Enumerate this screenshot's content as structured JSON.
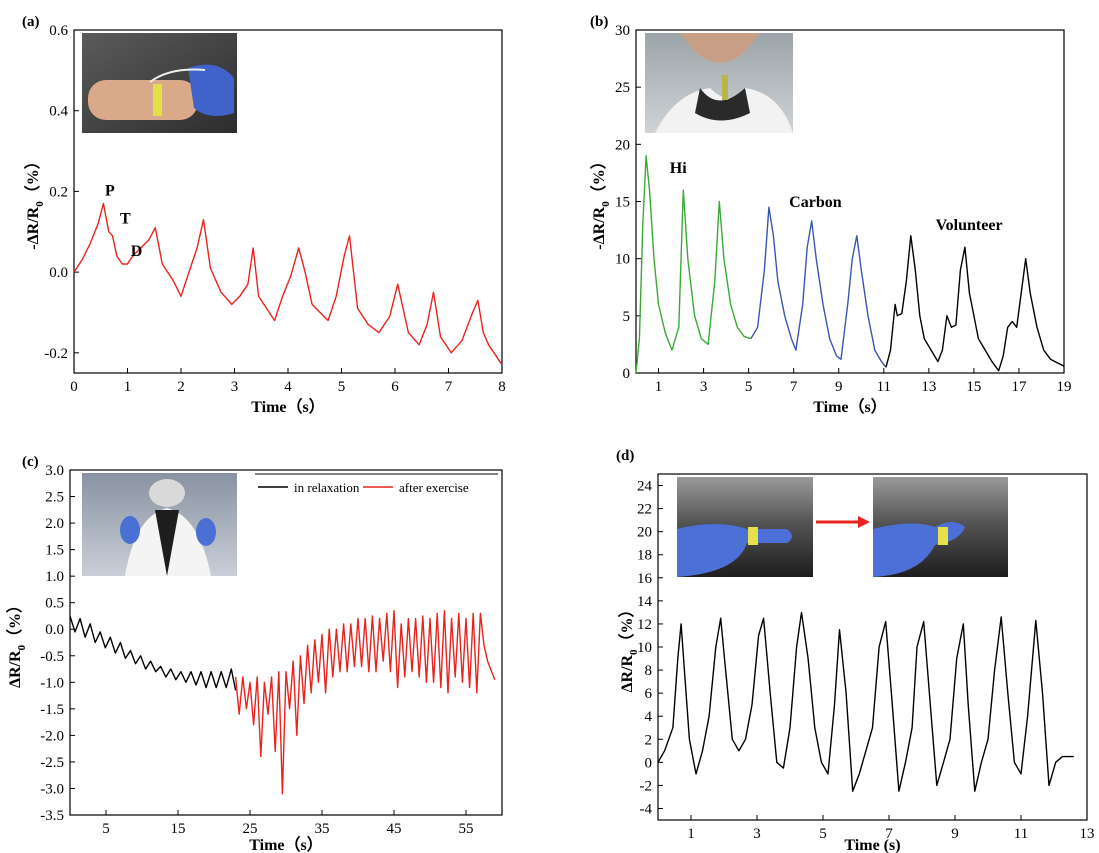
{
  "chart_data": [
    {
      "panel": "(a)",
      "type": "line",
      "xlabel": "Time（s）",
      "ylabel_main": "-ΔR/R",
      "ylabel_sub": "0",
      "ylabel_unit": "（%）",
      "xlim": [
        0,
        8
      ],
      "ylim": [
        -0.25,
        0.6
      ],
      "xticks": [
        "0",
        "1",
        "2",
        "3",
        "4",
        "5",
        "6",
        "7",
        "8"
      ],
      "yticks": [
        "-0.2",
        "0.0",
        "0.2",
        "0.4",
        "0.6"
      ],
      "annotations": [
        {
          "text": "P",
          "x": 0.58,
          "y": 0.19
        },
        {
          "text": "T",
          "x": 0.86,
          "y": 0.12
        },
        {
          "text": "D",
          "x": 1.06,
          "y": 0.04
        }
      ],
      "inset": "photo of wrist with sensor and gloved hand",
      "series": [
        {
          "color": "#e8231e",
          "x": [
            0,
            0.15,
            0.3,
            0.45,
            0.55,
            0.65,
            0.72,
            0.8,
            0.9,
            1.0,
            1.1,
            1.25,
            1.4,
            1.52,
            1.65,
            1.85,
            2.0,
            2.15,
            2.3,
            2.42,
            2.55,
            2.75,
            2.95,
            3.1,
            3.25,
            3.35,
            3.45,
            3.6,
            3.75,
            3.9,
            4.05,
            4.2,
            4.32,
            4.45,
            4.6,
            4.75,
            4.9,
            5.05,
            5.15,
            5.3,
            5.5,
            5.7,
            5.9,
            6.05,
            6.25,
            6.45,
            6.6,
            6.72,
            6.85,
            7.05,
            7.25,
            7.45,
            7.55,
            7.65,
            7.75,
            7.85,
            8.0
          ],
          "y": [
            0.0,
            0.03,
            0.07,
            0.12,
            0.17,
            0.1,
            0.09,
            0.04,
            0.02,
            0.02,
            0.04,
            0.06,
            0.08,
            0.11,
            0.02,
            -0.02,
            -0.06,
            0.0,
            0.06,
            0.13,
            0.01,
            -0.05,
            -0.08,
            -0.06,
            -0.03,
            0.06,
            -0.06,
            -0.09,
            -0.12,
            -0.06,
            -0.01,
            0.06,
            0.0,
            -0.08,
            -0.1,
            -0.12,
            -0.06,
            0.04,
            0.09,
            -0.09,
            -0.13,
            -0.15,
            -0.11,
            -0.03,
            -0.15,
            -0.18,
            -0.13,
            -0.05,
            -0.16,
            -0.2,
            -0.17,
            -0.1,
            -0.07,
            -0.15,
            -0.18,
            -0.2,
            -0.23
          ]
        }
      ]
    },
    {
      "panel": "(b)",
      "type": "line",
      "xlabel": "Time（s）",
      "ylabel_main": "-ΔR/R",
      "ylabel_sub": "0",
      "ylabel_unit": "（%）",
      "xlim": [
        0,
        19
      ],
      "ylim": [
        0,
        30
      ],
      "xticks": [
        "1",
        "3",
        "5",
        "7",
        "9",
        "11",
        "13",
        "15",
        "17",
        "19"
      ],
      "xtick_values": [
        1,
        3,
        5,
        7,
        9,
        11,
        13,
        15,
        17,
        19
      ],
      "yticks": [
        "0",
        "5",
        "10",
        "15",
        "20",
        "25",
        "30"
      ],
      "annotations": [
        {
          "text": "Hi",
          "x": 1.5,
          "y": 17.5
        },
        {
          "text": "Carbon",
          "x": 6.8,
          "y": 14.5
        },
        {
          "text": "Volunteer",
          "x": 13.3,
          "y": 12.5
        }
      ],
      "inset": "photo of neck with sensor",
      "series": [
        {
          "name": "",
          "color": "#3aaa35",
          "x": [
            0,
            0.15,
            0.3,
            0.45,
            0.6,
            0.8,
            1.0,
            1.3,
            1.6,
            1.9,
            2.1,
            2.3,
            2.6,
            2.9,
            3.2,
            3.5,
            3.7,
            3.9,
            4.2,
            4.5,
            4.8,
            5.1
          ],
          "y": [
            0,
            3,
            13,
            19,
            16,
            10,
            6,
            3.5,
            2,
            4,
            16,
            10,
            5,
            3,
            2.5,
            8,
            15,
            10,
            6,
            4,
            3.2,
            3.0
          ]
        },
        {
          "name": "",
          "color": "#3b55b3",
          "x": [
            5.1,
            5.4,
            5.7,
            5.9,
            6.1,
            6.3,
            6.6,
            6.9,
            7.1,
            7.4,
            7.6,
            7.8,
            8.0,
            8.3,
            8.6,
            8.9,
            9.1,
            9.4,
            9.6,
            9.8,
            10.0,
            10.3,
            10.6,
            10.9,
            11.1
          ],
          "y": [
            3.0,
            4,
            9,
            14.5,
            12,
            8,
            5,
            3,
            2,
            6,
            11,
            13.3,
            10,
            6,
            3,
            1.5,
            1.2,
            6,
            10,
            12,
            9,
            5,
            2,
            1,
            0.5
          ]
        },
        {
          "name": "",
          "color": "#000000",
          "x": [
            11.1,
            11.3,
            11.5,
            11.6,
            11.8,
            12.0,
            12.2,
            12.4,
            12.6,
            12.8,
            13.1,
            13.4,
            13.6,
            13.8,
            14.0,
            14.2,
            14.4,
            14.6,
            14.8,
            15.0,
            15.2,
            15.5,
            15.8,
            16.1,
            16.3,
            16.5,
            16.7,
            16.9,
            17.1,
            17.3,
            17.5,
            17.8,
            18.1,
            18.4,
            18.7,
            19.0
          ],
          "y": [
            0.5,
            2,
            6,
            5,
            5.2,
            8,
            12,
            9,
            5,
            3,
            2,
            1,
            2,
            5,
            4,
            4.2,
            9,
            11,
            7,
            5,
            3,
            2,
            1,
            0.2,
            1.5,
            4,
            4.5,
            4,
            7,
            10,
            7,
            4,
            2,
            1.2,
            0.9,
            0.6
          ]
        }
      ]
    },
    {
      "panel": "(c)",
      "type": "line",
      "xlabel": "Time（s）",
      "ylabel_main": "ΔR/R",
      "ylabel_sub": "0",
      "ylabel_unit": "（%）",
      "xlim": [
        0,
        60
      ],
      "ylim": [
        -3.5,
        3.0
      ],
      "xticks": [
        "5",
        "15",
        "25",
        "35",
        "45",
        "55"
      ],
      "xtick_values": [
        5,
        15,
        25,
        35,
        45,
        55
      ],
      "yticks": [
        "-3.5",
        "-3.0",
        "-2.5",
        "-2.0",
        "-1.5",
        "-1.0",
        "-0.5",
        "0.0",
        "0.5",
        "1.0",
        "1.5",
        "2.0",
        "2.5",
        "3.0"
      ],
      "inset": "photo of person holding sensor leads",
      "legend": [
        "in relaxation",
        "after exercise"
      ],
      "series": [
        {
          "name": "in relaxation",
          "color": "#000000",
          "x": [
            0,
            0.7,
            1.4,
            2.1,
            2.8,
            3.5,
            4.2,
            4.9,
            5.6,
            6.3,
            7.0,
            7.7,
            8.4,
            9.1,
            9.8,
            10.5,
            11.2,
            11.9,
            12.6,
            13.3,
            14.0,
            14.7,
            15.4,
            16.1,
            16.8,
            17.5,
            18.2,
            18.9,
            19.6,
            20.3,
            21.0,
            21.7,
            22.4,
            23.0
          ],
          "y": [
            0.25,
            -0.05,
            0.2,
            -0.15,
            0.1,
            -0.25,
            -0.05,
            -0.35,
            -0.15,
            -0.45,
            -0.25,
            -0.55,
            -0.4,
            -0.65,
            -0.5,
            -0.75,
            -0.6,
            -0.8,
            -0.7,
            -0.9,
            -0.75,
            -0.95,
            -0.8,
            -1.0,
            -0.8,
            -1.05,
            -0.8,
            -1.1,
            -0.8,
            -1.1,
            -0.8,
            -1.1,
            -0.75,
            -1.15
          ]
        },
        {
          "name": "after exercise",
          "color": "#e8231e",
          "x": [
            23.0,
            23.5,
            24.0,
            24.5,
            25.0,
            25.5,
            26.0,
            26.5,
            27.0,
            27.5,
            28.0,
            28.5,
            29.0,
            29.5,
            30.0,
            30.5,
            31.0,
            31.5,
            32.0,
            32.5,
            33.0,
            33.5,
            34.0,
            34.5,
            35.0,
            35.5,
            36.0,
            36.5,
            37.0,
            37.5,
            38.0,
            38.5,
            39.0,
            39.5,
            40.0,
            40.5,
            41.0,
            41.5,
            42.0,
            42.5,
            43.0,
            43.5,
            44.0,
            44.5,
            45.0,
            45.5,
            46.0,
            46.5,
            47.0,
            47.5,
            48.0,
            48.5,
            49.0,
            49.5,
            50.0,
            50.5,
            51.0,
            51.5,
            52.0,
            52.5,
            53.0,
            53.5,
            54.0,
            54.5,
            55.0,
            55.5,
            56.0,
            56.5,
            57.0,
            57.5,
            58.0,
            59.0
          ],
          "y": [
            -0.9,
            -1.6,
            -0.9,
            -1.5,
            -1.0,
            -1.8,
            -0.9,
            -2.4,
            -1.0,
            -1.6,
            -0.9,
            -2.3,
            -0.8,
            -3.1,
            -0.8,
            -1.5,
            -0.6,
            -2.0,
            -0.5,
            -1.4,
            -0.3,
            -1.2,
            -0.2,
            -1.0,
            -0.1,
            -1.2,
            0.0,
            -0.9,
            0.0,
            -0.8,
            0.1,
            -0.8,
            0.1,
            -0.7,
            0.2,
            -0.7,
            0.2,
            -0.8,
            0.25,
            -0.8,
            0.2,
            -0.6,
            0.3,
            -0.8,
            0.35,
            -1.1,
            0.1,
            -0.9,
            0.2,
            -0.8,
            0.2,
            -0.9,
            0.25,
            -1.0,
            0.2,
            -1.0,
            0.3,
            -1.1,
            0.35,
            -1.2,
            0.2,
            -0.9,
            0.3,
            -1.0,
            0.2,
            -1.1,
            0.3,
            -1.2,
            0.3,
            -0.3,
            -0.6,
            -0.95
          ]
        }
      ]
    },
    {
      "panel": "(d)",
      "type": "line",
      "xlabel": "Time (s)",
      "ylabel_main": "ΔR/R",
      "ylabel_sub": "0",
      "ylabel_unit": "（%）",
      "xlim": [
        0,
        13
      ],
      "ylim": [
        -5,
        25
      ],
      "xticks": [
        "1",
        "3",
        "5",
        "7",
        "9",
        "11",
        "13"
      ],
      "xtick_values": [
        1,
        3,
        5,
        7,
        9,
        11,
        13
      ],
      "yticks": [
        "-4",
        "-2",
        "0",
        "2",
        "4",
        "6",
        "8",
        "10",
        "12",
        "14",
        "16",
        "18",
        "20",
        "22",
        "24"
      ],
      "inset": "two photos of gloved finger bending, with arrow",
      "series": [
        {
          "color": "#000000",
          "x": [
            0,
            0.2,
            0.45,
            0.6,
            0.7,
            0.8,
            0.95,
            1.15,
            1.35,
            1.55,
            1.75,
            1.9,
            2.05,
            2.25,
            2.45,
            2.65,
            2.85,
            3.05,
            3.2,
            3.4,
            3.6,
            3.8,
            4.0,
            4.2,
            4.35,
            4.55,
            4.75,
            4.95,
            5.15,
            5.35,
            5.5,
            5.7,
            5.9,
            6.1,
            6.3,
            6.5,
            6.7,
            6.9,
            7.1,
            7.3,
            7.5,
            7.7,
            7.85,
            8.05,
            8.25,
            8.45,
            8.65,
            8.85,
            9.05,
            9.25,
            9.4,
            9.6,
            9.8,
            10.0,
            10.2,
            10.4,
            10.6,
            10.8,
            11.0,
            11.2,
            11.45,
            11.65,
            11.85,
            12.05,
            12.25,
            12.45,
            12.6
          ],
          "y": [
            0,
            1,
            3,
            9,
            12,
            8,
            2,
            -1,
            1,
            4,
            10,
            12.5,
            8,
            2,
            1,
            2,
            5,
            11,
            12.5,
            6,
            0,
            -0.5,
            3,
            10,
            13,
            9,
            3,
            0,
            -1,
            5,
            11.5,
            6,
            -2.5,
            -1,
            1,
            3,
            10,
            12.2,
            5,
            -2.5,
            0,
            3,
            10,
            12.2,
            5,
            -2,
            0,
            2,
            9,
            12,
            5,
            -2.5,
            0,
            2,
            8,
            12.6,
            6,
            0,
            -1,
            4,
            12.3,
            6,
            -2,
            0,
            0.5,
            0.5,
            0.5
          ]
        }
      ]
    }
  ]
}
